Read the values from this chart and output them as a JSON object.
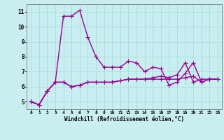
{
  "xlabel": "Windchill (Refroidissement éolien,°C)",
  "x_values": [
    0,
    1,
    2,
    3,
    4,
    5,
    6,
    7,
    8,
    9,
    10,
    11,
    12,
    13,
    14,
    15,
    16,
    17,
    18,
    19,
    20,
    21,
    22,
    23
  ],
  "line1": [
    5.0,
    4.8,
    5.7,
    6.3,
    10.7,
    10.7,
    11.1,
    9.3,
    8.0,
    7.3,
    7.3,
    7.3,
    7.7,
    7.6,
    7.0,
    7.3,
    7.2,
    6.1,
    6.3,
    6.9,
    7.6,
    6.3,
    6.5,
    6.5
  ],
  "line2": [
    5.0,
    4.8,
    5.7,
    6.3,
    6.3,
    6.0,
    6.1,
    6.3,
    6.3,
    6.3,
    6.3,
    6.4,
    6.5,
    6.5,
    6.5,
    6.5,
    6.5,
    6.5,
    6.5,
    6.6,
    6.7,
    6.3,
    6.5,
    6.5
  ],
  "line3": [
    5.0,
    4.8,
    5.7,
    6.3,
    6.3,
    6.0,
    6.1,
    6.3,
    6.3,
    6.3,
    6.3,
    6.4,
    6.5,
    6.5,
    6.5,
    6.6,
    6.7,
    6.6,
    6.8,
    7.6,
    6.3,
    6.5,
    6.5,
    6.5
  ],
  "line_color": "#990099",
  "bg_color": "#c8eef0",
  "grid_color": "#aadddd",
  "ylim": [
    4.5,
    11.5
  ],
  "yticks": [
    5,
    6,
    7,
    8,
    9,
    10,
    11
  ],
  "marker": "+",
  "markersize": 4,
  "linewidth": 1.0
}
